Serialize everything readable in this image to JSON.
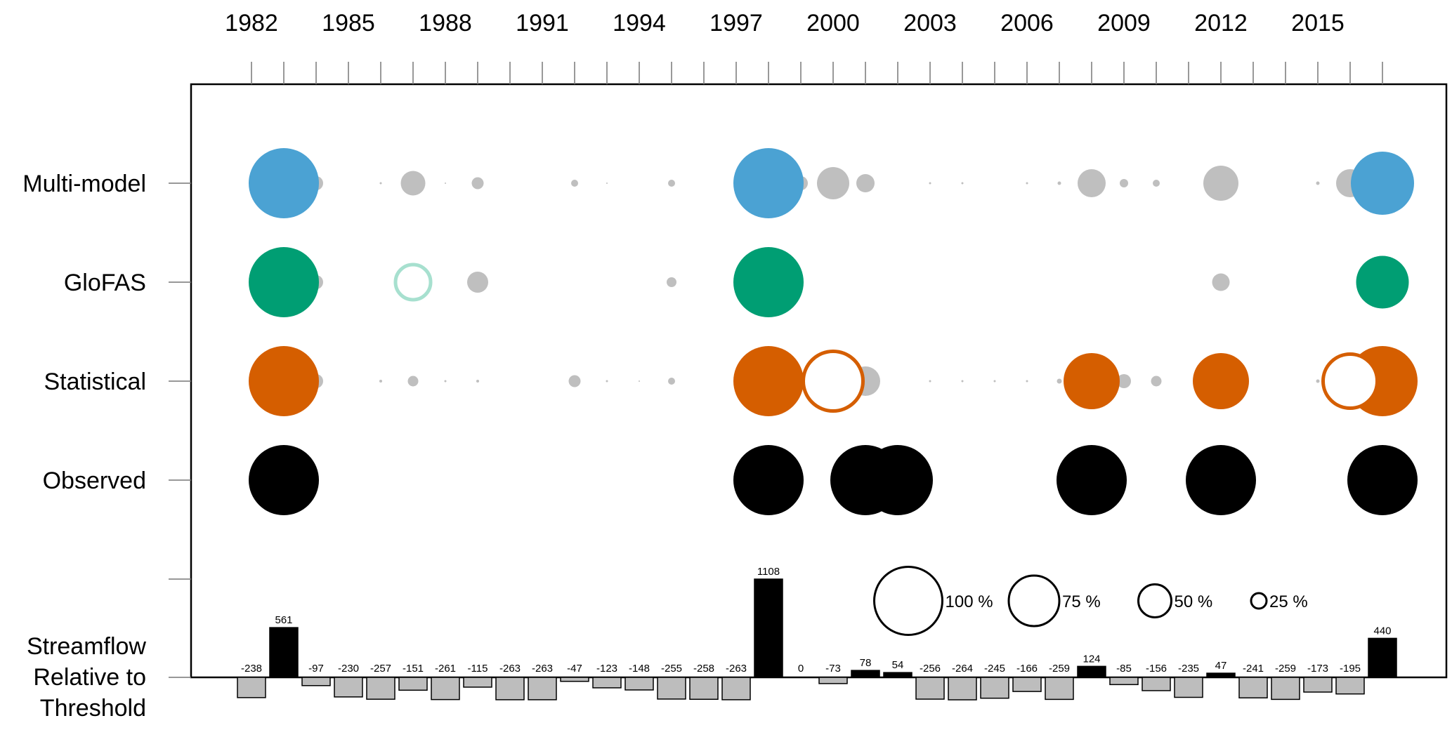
{
  "chart_data": {
    "type": "bubble-matrix-with-bar",
    "years": [
      1982,
      1983,
      1984,
      1985,
      1986,
      1987,
      1988,
      1989,
      1990,
      1991,
      1992,
      1993,
      1994,
      1995,
      1996,
      1997,
      1998,
      1999,
      2000,
      2001,
      2002,
      2003,
      2004,
      2005,
      2006,
      2007,
      2008,
      2009,
      2010,
      2011,
      2012,
      2013,
      2014,
      2015,
      2016,
      2017
    ],
    "year_tick_labels": [
      "1982",
      "1985",
      "1988",
      "1991",
      "1994",
      "1997",
      "2000",
      "2003",
      "2006",
      "2009",
      "2012",
      "2015"
    ],
    "year_tick_values": [
      1982,
      1985,
      1988,
      1991,
      1994,
      1997,
      2000,
      2003,
      2006,
      2009,
      2012,
      2015
    ],
    "rows": [
      {
        "label": "Multi-model",
        "color": "#4ba2d3",
        "points": [
          [
            1983,
            100,
            "filled"
          ],
          [
            1984,
            20,
            "gray"
          ],
          [
            1986,
            3,
            "gray"
          ],
          [
            1987,
            35,
            "gray"
          ],
          [
            1988,
            2,
            "gray"
          ],
          [
            1989,
            17,
            "gray"
          ],
          [
            1992,
            10,
            "gray"
          ],
          [
            1993,
            2,
            "gray"
          ],
          [
            1995,
            10,
            "gray"
          ],
          [
            1998,
            100,
            "filled"
          ],
          [
            1999,
            20,
            "gray"
          ],
          [
            2000,
            46,
            "gray"
          ],
          [
            2001,
            26,
            "gray"
          ],
          [
            2003,
            3,
            "gray"
          ],
          [
            2004,
            3,
            "gray"
          ],
          [
            2006,
            3,
            "gray"
          ],
          [
            2007,
            5,
            "gray"
          ],
          [
            2008,
            40,
            "gray"
          ],
          [
            2009,
            12,
            "gray"
          ],
          [
            2010,
            10,
            "gray"
          ],
          [
            2012,
            50,
            "gray"
          ],
          [
            2015,
            5,
            "gray"
          ],
          [
            2016,
            40,
            "gray"
          ],
          [
            2017,
            90,
            "filled"
          ]
        ]
      },
      {
        "label": "GloFAS",
        "color": "#009e73",
        "points": [
          [
            1983,
            100,
            "filled"
          ],
          [
            1984,
            20,
            "gray"
          ],
          [
            1987,
            55,
            "hollow"
          ],
          [
            1989,
            30,
            "gray"
          ],
          [
            1995,
            14,
            "gray"
          ],
          [
            1998,
            100,
            "filled"
          ],
          [
            2012,
            25,
            "gray"
          ],
          [
            2017,
            75,
            "filled"
          ]
        ]
      },
      {
        "label": "Statistical",
        "color": "#d55e00",
        "points": [
          [
            1983,
            100,
            "filled"
          ],
          [
            1984,
            20,
            "gray"
          ],
          [
            1986,
            4,
            "gray"
          ],
          [
            1987,
            15,
            "gray"
          ],
          [
            1988,
            3,
            "gray"
          ],
          [
            1989,
            4,
            "gray"
          ],
          [
            1992,
            17,
            "gray"
          ],
          [
            1993,
            3,
            "gray"
          ],
          [
            1994,
            2,
            "gray"
          ],
          [
            1995,
            10,
            "gray"
          ],
          [
            2001,
            42,
            "gray"
          ],
          [
            2003,
            3,
            "gray"
          ],
          [
            2004,
            3,
            "gray"
          ],
          [
            2005,
            3,
            "gray"
          ],
          [
            2006,
            3,
            "gray"
          ],
          [
            2007,
            7,
            "gray"
          ],
          [
            2009,
            20,
            "gray"
          ],
          [
            2010,
            15,
            "gray"
          ],
          [
            2015,
            5,
            "gray"
          ],
          [
            1998,
            100,
            "filled"
          ],
          [
            2000,
            90,
            "hollow"
          ],
          [
            2008,
            80,
            "filled"
          ],
          [
            2012,
            80,
            "filled"
          ],
          [
            2017,
            100,
            "filled"
          ],
          [
            2016,
            82,
            "hollow"
          ]
        ]
      },
      {
        "label": "Observed",
        "color": "#000000",
        "points": [
          [
            1983,
            100,
            "filled"
          ],
          [
            1998,
            100,
            "filled"
          ],
          [
            2001,
            100,
            "filled"
          ],
          [
            2002,
            100,
            "filled"
          ],
          [
            2008,
            100,
            "filled"
          ],
          [
            2012,
            100,
            "filled"
          ],
          [
            2017,
            100,
            "filled"
          ]
        ]
      }
    ],
    "bar_row_label": [
      "Streamflow",
      "Relative to",
      "Threshold"
    ],
    "bars": [
      -238,
      561,
      -97,
      -230,
      -257,
      -151,
      -261,
      -115,
      -263,
      -263,
      -47,
      -123,
      -148,
      -255,
      -258,
      -263,
      1108,
      0,
      -73,
      78,
      54,
      -256,
      -264,
      -245,
      -166,
      -259,
      124,
      -85,
      -156,
      -235,
      47,
      -241,
      -259,
      -173,
      -195,
      440
    ],
    "bar_colors": {
      "positive": "#000000",
      "negative": "#bdbdbd"
    },
    "legend": {
      "items": [
        {
          "label": "100 %",
          "value": 100
        },
        {
          "label": "75 %",
          "value": 75
        },
        {
          "label": "50 %",
          "value": 50
        },
        {
          "label": "25 %",
          "value": 25
        }
      ]
    }
  }
}
